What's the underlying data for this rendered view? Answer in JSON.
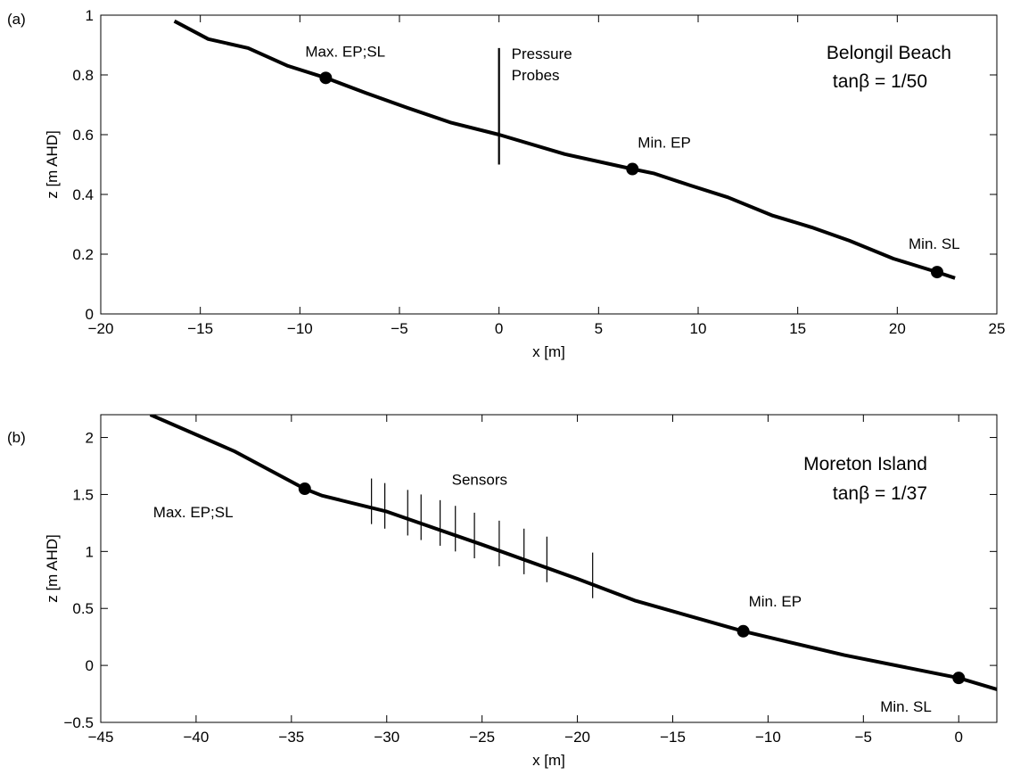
{
  "chart_data": [
    {
      "type": "line",
      "panel_label": "(a)",
      "xlabel": "x [m]",
      "ylabel": "z [m AHD]",
      "xlim": [
        -20,
        25
      ],
      "ylim": [
        0,
        1
      ],
      "xticks": [
        -20,
        -15,
        -10,
        -5,
        0,
        5,
        10,
        15,
        20,
        25
      ],
      "xtick_labels": [
        "−20",
        "−15",
        "−10",
        "−5",
        "0",
        "5",
        "10",
        "15",
        "20",
        "25"
      ],
      "yticks": [
        0,
        0.2,
        0.4,
        0.6,
        0.8,
        1
      ],
      "ytick_labels": [
        "0",
        "0.2",
        "0.4",
        "0.6",
        "0.8",
        "1"
      ],
      "profile": {
        "x": [
          -16.3,
          -14.6,
          -12.6,
          -10.6,
          -8.7,
          -6.7,
          -4.6,
          -2.4,
          0,
          3.3,
          6.7,
          7.8,
          9.6,
          11.5,
          13.7,
          15.7,
          17.6,
          19.8,
          22.0,
          22.9
        ],
        "z": [
          0.98,
          0.92,
          0.89,
          0.83,
          0.79,
          0.74,
          0.69,
          0.64,
          0.6,
          0.535,
          0.485,
          0.47,
          0.43,
          0.39,
          0.33,
          0.29,
          0.245,
          0.185,
          0.14,
          0.12
        ]
      },
      "markers": [
        {
          "label": "Max. EP;SL",
          "x": -8.7,
          "z": 0.79
        },
        {
          "label": "Min. EP",
          "x": 6.7,
          "z": 0.485
        },
        {
          "label": "Min. SL",
          "x": 22.0,
          "z": 0.14
        }
      ],
      "instruments": {
        "label_line1": "Pressure",
        "label_line2": "Probes",
        "bars": [
          {
            "x": 0,
            "z_bottom": 0.5,
            "z_top": 0.89
          }
        ]
      },
      "site": {
        "name": "Belongil Beach",
        "slope": "tanβ = 1/50"
      }
    },
    {
      "type": "line",
      "panel_label": "(b)",
      "xlabel": "x [m]",
      "ylabel": "z [m AHD]",
      "xlim": [
        -45,
        2
      ],
      "ylim": [
        -0.5,
        2.2
      ],
      "xticks": [
        -45,
        -40,
        -35,
        -30,
        -25,
        -20,
        -15,
        -10,
        -5,
        0
      ],
      "xtick_labels": [
        "−45",
        "−40",
        "−35",
        "−30",
        "−25",
        "−20",
        "−15",
        "−10",
        "−5",
        "0"
      ],
      "yticks": [
        -0.5,
        0,
        0.5,
        1,
        1.5,
        2
      ],
      "ytick_labels": [
        "−0.5",
        "0",
        "0.5",
        "1",
        "1.5",
        "2"
      ],
      "profile": {
        "x": [
          -42.4,
          -38.0,
          -34.3,
          -33.4,
          -30.0,
          -25.0,
          -20.0,
          -17.0,
          -11.3,
          -6.0,
          0,
          2.0
        ],
        "z": [
          2.2,
          1.88,
          1.55,
          1.49,
          1.35,
          1.06,
          0.76,
          0.57,
          0.3,
          0.09,
          -0.11,
          -0.21
        ]
      },
      "markers": [
        {
          "label": "Max. EP;SL",
          "x": -34.3,
          "z": 1.55
        },
        {
          "label": "Min. EP",
          "x": -11.3,
          "z": 0.3
        },
        {
          "label": "Min. SL",
          "x": 0,
          "z": -0.11
        }
      ],
      "instruments": {
        "label_line1": "Sensors",
        "label_line2": "",
        "bars": [
          {
            "x": -30.8,
            "z_bottom": 1.24,
            "z_top": 1.64
          },
          {
            "x": -30.1,
            "z_bottom": 1.2,
            "z_top": 1.6
          },
          {
            "x": -28.9,
            "z_bottom": 1.14,
            "z_top": 1.54
          },
          {
            "x": -28.2,
            "z_bottom": 1.1,
            "z_top": 1.5
          },
          {
            "x": -27.2,
            "z_bottom": 1.05,
            "z_top": 1.45
          },
          {
            "x": -26.4,
            "z_bottom": 1.0,
            "z_top": 1.4
          },
          {
            "x": -25.4,
            "z_bottom": 0.94,
            "z_top": 1.34
          },
          {
            "x": -24.1,
            "z_bottom": 0.87,
            "z_top": 1.27
          },
          {
            "x": -22.8,
            "z_bottom": 0.8,
            "z_top": 1.2
          },
          {
            "x": -21.6,
            "z_bottom": 0.73,
            "z_top": 1.13
          },
          {
            "x": -19.2,
            "z_bottom": 0.59,
            "z_top": 0.99
          }
        ]
      },
      "site": {
        "name": "Moreton Island",
        "slope": "tanβ = 1/37"
      }
    }
  ]
}
